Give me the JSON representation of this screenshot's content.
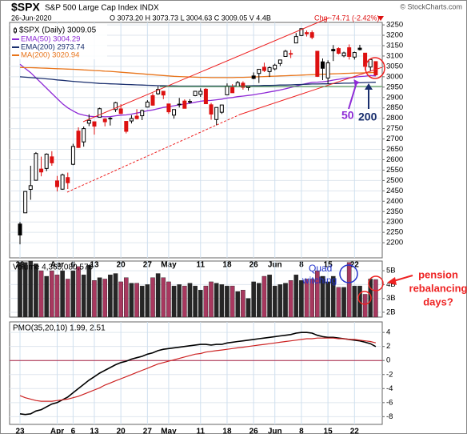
{
  "header": {
    "symbol": "$SPX",
    "name": "S&P 500 Large Cap Index INDX",
    "credit": "© StockCharts.com",
    "date": "26-Jun-2020",
    "quote": "O 3073.20 H 3073.73 L 3004.63 C 3009.05 V 4.4B",
    "change": "Chg -74.71 (-2.42%)"
  },
  "chart_data": [
    {
      "type": "candlestick",
      "categories": [
        "23",
        null,
        null,
        null,
        null,
        null,
        null,
        "Apr",
        null,
        null,
        "6",
        null,
        null,
        null,
        "13",
        null,
        null,
        null,
        null,
        "20",
        null,
        null,
        null,
        null,
        "27",
        null,
        null,
        null,
        "May",
        null,
        null,
        null,
        null,
        null,
        "11",
        null,
        null,
        null,
        null,
        "18",
        null,
        null,
        null,
        null,
        "26",
        null,
        null,
        null,
        "Jun",
        null,
        null,
        null,
        null,
        "8",
        null,
        null,
        null,
        null,
        "15",
        null,
        null,
        null,
        null,
        "22",
        null,
        null,
        null,
        null
      ],
      "series": [
        {
          "name": "$SPX (Daily) 3009.05",
          "up_color": "#000000",
          "down_color": "#dd1111",
          "open": [
            2290,
            2344,
            2457,
            2501,
            2555,
            2558,
            2614,
            2498,
            2458,
            2514,
            2578,
            2738,
            2686,
            2776,
            2783,
            2805,
            2796,
            2799,
            2842,
            2845,
            2785,
            2787,
            2810,
            2812,
            2854,
            2909,
            2918,
            2930,
            2869,
            2815,
            2868,
            2883,
            2879,
            2909,
            2915,
            2940,
            2865,
            2794,
            2829,
            2913,
            2948,
            2953,
            2969,
            2948,
            3004,
            3016,
            3046,
            3025,
            3038,
            3064,
            3098,
            3112,
            3163,
            3199,
            3213,
            3213,
            3123,
            3072,
            2994,
            3132,
            3136,
            3101,
            3140,
            3095,
            3138,
            3114,
            3047,
            3073.2
          ],
          "high": [
            2300,
            2449,
            2571,
            2637,
            2615,
            2631,
            2641,
            2522,
            2533,
            2538,
            2677,
            2756,
            2760,
            2819,
            2783,
            2851,
            2801,
            2806,
            2879,
            2868,
            2785,
            2815,
            2844,
            2842,
            2887,
            2921,
            2954,
            2930,
            2869,
            2844,
            2898,
            2891,
            2892,
            2932,
            2944,
            2945,
            2874,
            2852,
            2865,
            2968,
            2964,
            2980,
            2978,
            2956,
            3021,
            3036,
            3068,
            3050,
            3063,
            3082,
            3130,
            3129,
            3211,
            3233,
            3223,
            3223,
            3123,
            3088,
            3079,
            3153,
            3142,
            3121,
            3156,
            3121,
            3154,
            3115,
            3086,
            3073.73
          ],
          "low": [
            2192,
            2344,
            2407,
            2500,
            2520,
            2545,
            2571,
            2447,
            2455,
            2459,
            2574,
            2657,
            2663,
            2762,
            2721,
            2805,
            2761,
            2765,
            2830,
            2820,
            2727,
            2775,
            2794,
            2791,
            2852,
            2860,
            2913,
            2892,
            2821,
            2798,
            2852,
            2847,
            2870,
            2906,
            2903,
            2869,
            2793,
            2766,
            2821,
            2913,
            2922,
            2953,
            2938,
            2933,
            2988,
            2970,
            3023,
            2999,
            3031,
            3052,
            3098,
            3090,
            3163,
            3196,
            3194,
            3181,
            2999,
            2984,
            2965,
            3076,
            3108,
            3094,
            3083,
            3083,
            3127,
            3033,
            3025,
            3004.63
          ],
          "close": [
            2237,
            2447,
            2475,
            2630,
            2541,
            2627,
            2585,
            2470,
            2527,
            2489,
            2664,
            2659,
            2750,
            2790,
            2762,
            2846,
            2783,
            2800,
            2875,
            2823,
            2737,
            2799,
            2798,
            2837,
            2878,
            2863,
            2939,
            2912,
            2831,
            2842,
            2868,
            2848,
            2881,
            2930,
            2930,
            2870,
            2820,
            2852,
            2864,
            2954,
            2923,
            2972,
            2949,
            2955,
            2992,
            3036,
            3030,
            3044,
            3056,
            3081,
            3123,
            3112,
            3194,
            3232,
            3207,
            3190,
            3002,
            3041,
            3067,
            3125,
            3113,
            3115,
            3098,
            3117,
            3131,
            3050,
            3083,
            3009.05
          ]
        }
      ],
      "lines": [
        {
          "name": "EMA(50) 3004.29",
          "color": "#8e2bd6",
          "values": [
            3060,
            3040,
            3020,
            2995,
            2970,
            2945,
            2920,
            2895,
            2870,
            2850,
            2835,
            2822,
            2815,
            2810,
            2808,
            2808,
            2807,
            2808,
            2812,
            2815,
            2816,
            2820,
            2825,
            2830,
            2836,
            2840,
            2846,
            2852,
            2856,
            2860,
            2865,
            2868,
            2872,
            2877,
            2882,
            2885,
            2886,
            2889,
            2892,
            2897,
            2900,
            2904,
            2907,
            2910,
            2913,
            2918,
            2922,
            2927,
            2931,
            2936,
            2942,
            2948,
            2955,
            2962,
            2968,
            2973,
            2974,
            2976,
            2979,
            2984,
            2988,
            2992,
            2995,
            2998,
            3001,
            3003,
            3006,
            3004.29
          ]
        },
        {
          "name": "EMA(200) 2973.74",
          "color": "#1a2f6e",
          "values": [
            3000,
            2998,
            2996,
            2994,
            2992,
            2990,
            2988,
            2985,
            2983,
            2980,
            2978,
            2976,
            2974,
            2972,
            2970,
            2968,
            2967,
            2966,
            2965,
            2964,
            2963,
            2962,
            2961,
            2960,
            2959,
            2958,
            2957,
            2957,
            2956,
            2956,
            2955,
            2955,
            2955,
            2955,
            2955,
            2955,
            2955,
            2955,
            2955,
            2955,
            2955,
            2956,
            2956,
            2956,
            2957,
            2957,
            2958,
            2958,
            2959,
            2960,
            2960,
            2961,
            2962,
            2963,
            2964,
            2965,
            2965,
            2966,
            2966,
            2967,
            2968,
            2969,
            2969,
            2970,
            2971,
            2972,
            2973,
            2973.74
          ]
        },
        {
          "name": "MA(200) 3020.94",
          "color": "#e8741a",
          "values": [
            3045,
            3044,
            3044,
            3043,
            3042,
            3041,
            3040,
            3039,
            3038,
            3037,
            3036,
            3035,
            3033,
            3032,
            3030,
            3029,
            3027,
            3026,
            3024,
            3022,
            3020,
            3018,
            3016,
            3014,
            3012,
            3010,
            3008,
            3006,
            3004,
            3002,
            3001,
            3000,
            2999,
            2998,
            2997,
            2997,
            2996,
            2996,
            2996,
            2996,
            2996,
            2997,
            2997,
            2998,
            2999,
            3000,
            3001,
            3002,
            3003,
            3004,
            3005,
            3006,
            3007,
            3008,
            3009,
            3010,
            3011,
            3012,
            3013,
            3014,
            3015,
            3016,
            3017,
            3018,
            3018,
            3019,
            3020,
            3020.94
          ]
        }
      ],
      "ylim": [
        2127,
        3262
      ],
      "yticks": [
        2200,
        2250,
        2300,
        2350,
        2400,
        2450,
        2500,
        2550,
        2600,
        2650,
        2700,
        2750,
        2800,
        2850,
        2900,
        2950,
        3000,
        3050,
        3100,
        3150,
        3200,
        3250
      ],
      "grid": true,
      "annotations": [
        "50",
        "200"
      ]
    },
    {
      "type": "bar",
      "title": "Volume 4,365,080,576",
      "up_color": "#262626",
      "down_color": "#a8385f",
      "values": [
        5.6,
        5.6,
        5.7,
        5.5,
        5.0,
        4.6,
        5.0,
        4.7,
        5.0,
        4.4,
        5.0,
        5.3,
        4.7,
        5.4,
        4.3,
        4.5,
        4.4,
        4.7,
        4.8,
        4.2,
        4.5,
        4.1,
        4.1,
        3.9,
        4.0,
        4.5,
        4.8,
        4.5,
        4.2,
        3.9,
        4.0,
        3.9,
        4.1,
        3.9,
        3.6,
        3.9,
        4.2,
        4.1,
        4.0,
        3.9,
        3.9,
        3.5,
        3.6,
        3.0,
        4.2,
        4.1,
        4.6,
        4.7,
        3.9,
        4.0,
        4.1,
        4.3,
        4.7,
        4.3,
        4.4,
        4.4,
        5.0,
        4.6,
        4.2,
        4.6,
        3.8,
        3.8,
        5.6,
        3.9,
        3.9,
        3.3,
        4.4,
        4.365
      ],
      "ylim": [
        1.65,
        5.7
      ],
      "yticks": [
        {
          "value": 2,
          "label": "2B"
        },
        {
          "value": 3,
          "label": "3B"
        },
        {
          "value": 4,
          "label": "4B"
        },
        {
          "value": 5,
          "label": "5B"
        }
      ],
      "annotations": [
        "Quad",
        "witching",
        "pension",
        "rebalancing",
        "days?"
      ]
    },
    {
      "type": "line",
      "title": "PMO(35,20,10) 1.99, 2.51",
      "categories": [
        "23",
        null,
        null,
        null,
        null,
        null,
        null,
        "Apr",
        null,
        null,
        "6",
        null,
        null,
        null,
        "13",
        null,
        null,
        null,
        null,
        "20",
        null,
        null,
        null,
        null,
        "27",
        null,
        null,
        null,
        "May",
        null,
        null,
        null,
        null,
        null,
        "11",
        null,
        null,
        null,
        null,
        "18",
        null,
        null,
        null,
        null,
        "26",
        null,
        null,
        null,
        "Jun",
        null,
        null,
        null,
        null,
        "8",
        null,
        null,
        null,
        null,
        "15",
        null,
        null,
        null,
        null,
        "22",
        null,
        null,
        null,
        null
      ],
      "series": [
        {
          "color": "#000000",
          "values": [
            -7.6,
            -7.7,
            -7.6,
            -7.2,
            -7.0,
            -6.6,
            -6.2,
            -6.0,
            -5.6,
            -5.2,
            -4.6,
            -4.0,
            -3.4,
            -2.8,
            -2.3,
            -1.8,
            -1.4,
            -1.0,
            -0.6,
            -0.3,
            -0.1,
            0.2,
            0.4,
            0.6,
            0.9,
            1.1,
            1.4,
            1.6,
            1.7,
            1.8,
            1.9,
            2.0,
            2.1,
            2.2,
            2.3,
            2.3,
            2.2,
            2.3,
            2.3,
            2.5,
            2.6,
            2.7,
            2.8,
            2.9,
            3.0,
            3.1,
            3.2,
            3.3,
            3.4,
            3.5,
            3.6,
            3.7,
            3.9,
            4.0,
            4.0,
            3.9,
            3.6,
            3.4,
            3.3,
            3.3,
            3.2,
            3.1,
            3.0,
            2.9,
            2.8,
            2.6,
            2.4,
            1.99
          ]
        },
        {
          "color": "#cc2222",
          "values": [
            -5.0,
            -5.3,
            -5.5,
            -5.7,
            -5.8,
            -5.8,
            -5.8,
            -5.7,
            -5.6,
            -5.5,
            -5.3,
            -5.1,
            -4.8,
            -4.5,
            -4.2,
            -3.9,
            -3.5,
            -3.2,
            -2.9,
            -2.6,
            -2.3,
            -2.0,
            -1.7,
            -1.4,
            -1.1,
            -0.8,
            -0.5,
            -0.3,
            -0.1,
            0.1,
            0.3,
            0.5,
            0.7,
            0.9,
            1.0,
            1.2,
            1.3,
            1.4,
            1.5,
            1.6,
            1.7,
            1.8,
            1.9,
            2.0,
            2.1,
            2.2,
            2.3,
            2.4,
            2.5,
            2.6,
            2.7,
            2.8,
            2.9,
            3.0,
            3.1,
            3.1,
            3.2,
            3.2,
            3.2,
            3.2,
            3.1,
            3.1,
            3.0,
            3.0,
            2.9,
            2.8,
            2.7,
            2.51
          ]
        }
      ],
      "ylim": [
        -9.1,
        5.5
      ],
      "yticks": [
        4,
        2,
        0,
        -2,
        -4,
        -6,
        -8
      ],
      "zero_line_color": "#aa2244"
    }
  ]
}
